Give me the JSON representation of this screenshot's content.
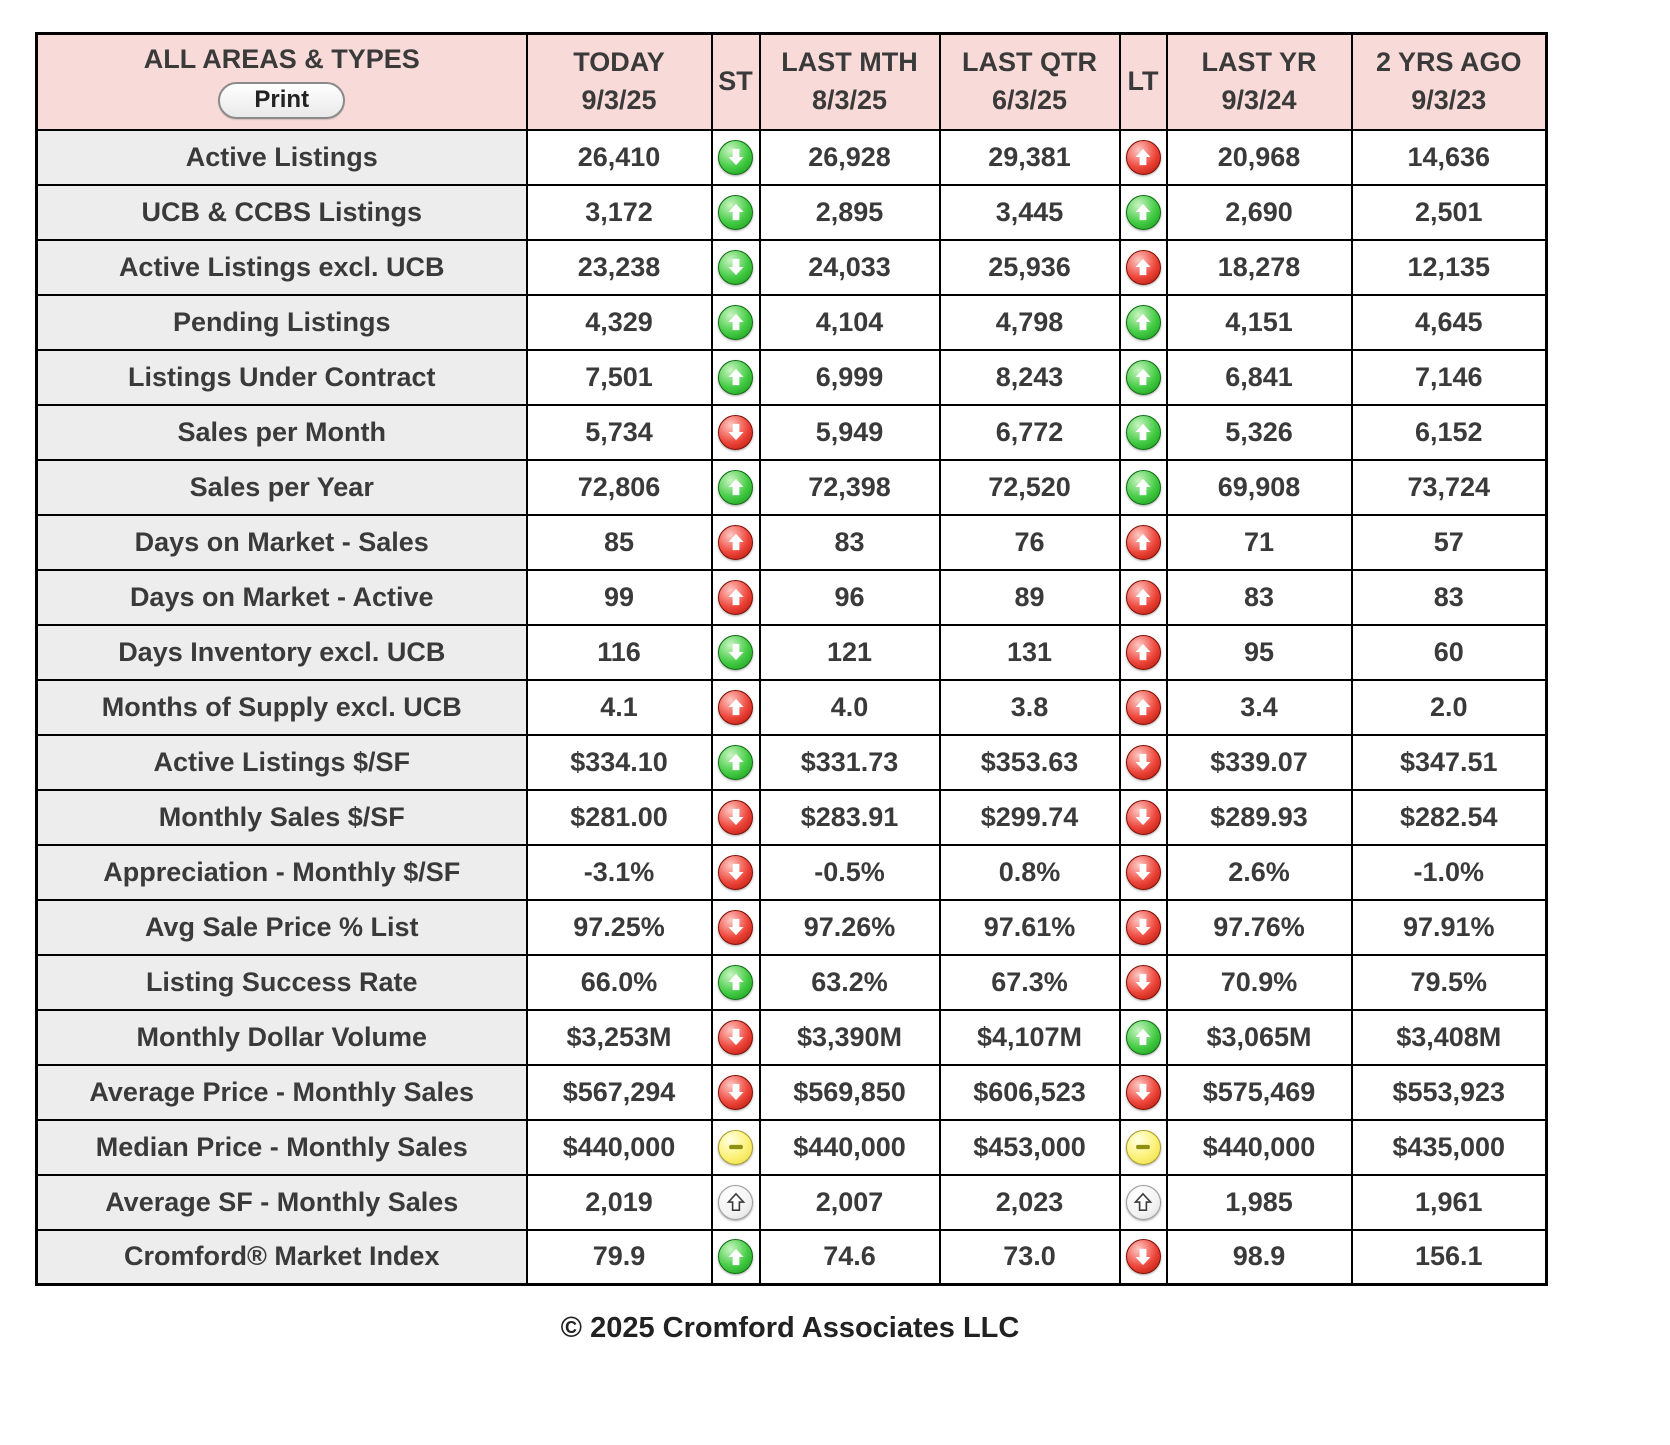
{
  "header": {
    "title": "ALL AREAS & TYPES",
    "print_label": "Print",
    "columns": {
      "today": {
        "label": "TODAY",
        "date": "9/3/25"
      },
      "st": {
        "label": "ST"
      },
      "last_mth": {
        "label": "LAST MTH",
        "date": "8/3/25"
      },
      "last_qtr": {
        "label": "LAST QTR",
        "date": "6/3/25"
      },
      "lt": {
        "label": "LT"
      },
      "last_yr": {
        "label": "LAST YR",
        "date": "9/3/24"
      },
      "two_yrs_ago": {
        "label": "2 YRS AGO",
        "date": "9/3/23"
      }
    }
  },
  "icons": {
    "green-up": "up-arrow-green-circle",
    "green-down": "down-arrow-green-circle",
    "red-up": "up-arrow-red-circle",
    "red-down": "down-arrow-red-circle",
    "yellow-flat": "flat-dash-yellow-circle",
    "white-up": "up-arrow-white-circle"
  },
  "colors": {
    "header_background": "#f8dbd8",
    "label_background": "#ededed",
    "border": "#000000",
    "green": "#169718",
    "red": "#b01306",
    "yellow": "#fcf177"
  },
  "rows": [
    {
      "label": "Active Listings",
      "today": "26,410",
      "st": "green-down",
      "last_mth": "26,928",
      "last_qtr": "29,381",
      "lt": "red-up",
      "last_yr": "20,968",
      "two_yrs_ago": "14,636"
    },
    {
      "label": "UCB & CCBS Listings",
      "today": "3,172",
      "st": "green-up",
      "last_mth": "2,895",
      "last_qtr": "3,445",
      "lt": "green-up",
      "last_yr": "2,690",
      "two_yrs_ago": "2,501"
    },
    {
      "label": "Active Listings excl. UCB",
      "today": "23,238",
      "st": "green-down",
      "last_mth": "24,033",
      "last_qtr": "25,936",
      "lt": "red-up",
      "last_yr": "18,278",
      "two_yrs_ago": "12,135"
    },
    {
      "label": "Pending Listings",
      "today": "4,329",
      "st": "green-up",
      "last_mth": "4,104",
      "last_qtr": "4,798",
      "lt": "green-up",
      "last_yr": "4,151",
      "two_yrs_ago": "4,645"
    },
    {
      "label": "Listings Under Contract",
      "today": "7,501",
      "st": "green-up",
      "last_mth": "6,999",
      "last_qtr": "8,243",
      "lt": "green-up",
      "last_yr": "6,841",
      "two_yrs_ago": "7,146"
    },
    {
      "label": "Sales per Month",
      "today": "5,734",
      "st": "red-down",
      "last_mth": "5,949",
      "last_qtr": "6,772",
      "lt": "green-up",
      "last_yr": "5,326",
      "two_yrs_ago": "6,152"
    },
    {
      "label": "Sales per Year",
      "today": "72,806",
      "st": "green-up",
      "last_mth": "72,398",
      "last_qtr": "72,520",
      "lt": "green-up",
      "last_yr": "69,908",
      "two_yrs_ago": "73,724"
    },
    {
      "label": "Days on Market - Sales",
      "today": "85",
      "st": "red-up",
      "last_mth": "83",
      "last_qtr": "76",
      "lt": "red-up",
      "last_yr": "71",
      "two_yrs_ago": "57"
    },
    {
      "label": "Days on Market - Active",
      "today": "99",
      "st": "red-up",
      "last_mth": "96",
      "last_qtr": "89",
      "lt": "red-up",
      "last_yr": "83",
      "two_yrs_ago": "83"
    },
    {
      "label": "Days Inventory excl. UCB",
      "today": "116",
      "st": "green-down",
      "last_mth": "121",
      "last_qtr": "131",
      "lt": "red-up",
      "last_yr": "95",
      "two_yrs_ago": "60"
    },
    {
      "label": "Months of Supply excl. UCB",
      "today": "4.1",
      "st": "red-up",
      "last_mth": "4.0",
      "last_qtr": "3.8",
      "lt": "red-up",
      "last_yr": "3.4",
      "two_yrs_ago": "2.0"
    },
    {
      "label": "Active Listings $/SF",
      "today": "$334.10",
      "st": "green-up",
      "last_mth": "$331.73",
      "last_qtr": "$353.63",
      "lt": "red-down",
      "last_yr": "$339.07",
      "two_yrs_ago": "$347.51"
    },
    {
      "label": "Monthly Sales $/SF",
      "today": "$281.00",
      "st": "red-down",
      "last_mth": "$283.91",
      "last_qtr": "$299.74",
      "lt": "red-down",
      "last_yr": "$289.93",
      "two_yrs_ago": "$282.54"
    },
    {
      "label": "Appreciation - Monthly $/SF",
      "today": "-3.1%",
      "st": "red-down",
      "last_mth": "-0.5%",
      "last_qtr": "0.8%",
      "lt": "red-down",
      "last_yr": "2.6%",
      "two_yrs_ago": "-1.0%"
    },
    {
      "label": "Avg Sale Price % List",
      "today": "97.25%",
      "st": "red-down",
      "last_mth": "97.26%",
      "last_qtr": "97.61%",
      "lt": "red-down",
      "last_yr": "97.76%",
      "two_yrs_ago": "97.91%"
    },
    {
      "label": "Listing Success Rate",
      "today": "66.0%",
      "st": "green-up",
      "last_mth": "63.2%",
      "last_qtr": "67.3%",
      "lt": "red-down",
      "last_yr": "70.9%",
      "two_yrs_ago": "79.5%"
    },
    {
      "label": "Monthly Dollar Volume",
      "today": "$3,253M",
      "st": "red-down",
      "last_mth": "$3,390M",
      "last_qtr": "$4,107M",
      "lt": "green-up",
      "last_yr": "$3,065M",
      "two_yrs_ago": "$3,408M"
    },
    {
      "label": "Average Price - Monthly Sales",
      "today": "$567,294",
      "st": "red-down",
      "last_mth": "$569,850",
      "last_qtr": "$606,523",
      "lt": "red-down",
      "last_yr": "$575,469",
      "two_yrs_ago": "$553,923"
    },
    {
      "label": "Median Price - Monthly Sales",
      "today": "$440,000",
      "st": "yellow-flat",
      "last_mth": "$440,000",
      "last_qtr": "$453,000",
      "lt": "yellow-flat",
      "last_yr": "$440,000",
      "two_yrs_ago": "$435,000"
    },
    {
      "label": "Average SF - Monthly Sales",
      "today": "2,019",
      "st": "white-up",
      "last_mth": "2,007",
      "last_qtr": "2,023",
      "lt": "white-up",
      "last_yr": "1,985",
      "two_yrs_ago": "1,961"
    },
    {
      "label": "Cromford® Market Index",
      "today": "79.9",
      "st": "green-up",
      "last_mth": "74.6",
      "last_qtr": "73.0",
      "lt": "red-down",
      "last_yr": "98.9",
      "two_yrs_ago": "156.1"
    }
  ],
  "footer": {
    "copyright": "© 2025 Cromford Associates LLC"
  }
}
